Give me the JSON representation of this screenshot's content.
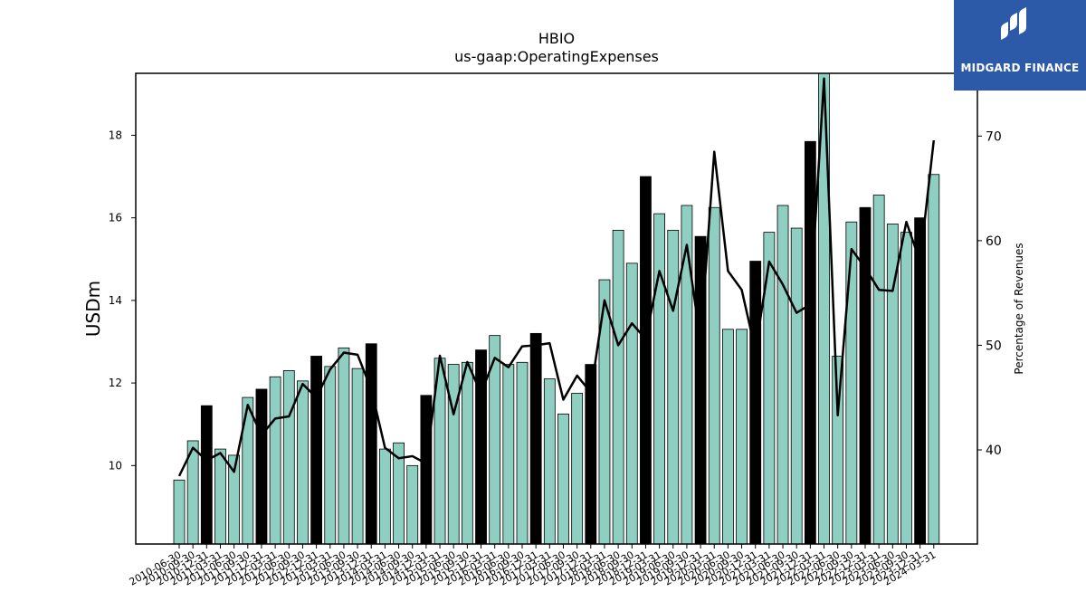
{
  "brand": {
    "name": "MIDGARD FINANCE",
    "color": "#2d5aa8"
  },
  "chart_data": {
    "type": "bar",
    "title": "HBIO",
    "subtitle": "us-gaap:OperatingExpenses",
    "ylabel": "USDm",
    "y2label": "Percentage of Revenues",
    "ylim": [
      8.1,
      19.5
    ],
    "y2lim": [
      31,
      76
    ],
    "yticks": [
      10,
      12,
      14,
      16,
      18
    ],
    "y2ticks": [
      40,
      50,
      60,
      70
    ],
    "colors": {
      "quarter_bar": "#8ecfc2",
      "year_end_bar": "#000000",
      "line": "#000000"
    },
    "categories": [
      "2010-06-30",
      "2010-09-30",
      "2010-12-31",
      "2011-03-31",
      "2011-06-30",
      "2011-09-30",
      "2011-12-31",
      "2012-03-31",
      "2012-06-30",
      "2012-09-30",
      "2012-12-31",
      "2013-03-31",
      "2013-06-30",
      "2013-09-30",
      "2013-12-31",
      "2014-03-31",
      "2014-06-30",
      "2014-09-30",
      "2014-12-31",
      "2015-03-31",
      "2015-06-30",
      "2015-09-30",
      "2015-12-31",
      "2016-03-31",
      "2016-06-30",
      "2016-09-30",
      "2016-12-31",
      "2017-03-31",
      "2017-06-30",
      "2017-09-30",
      "2017-12-31",
      "2018-03-31",
      "2018-06-30",
      "2018-09-30",
      "2018-12-31",
      "2019-03-31",
      "2019-06-30",
      "2019-09-30",
      "2019-12-31",
      "2020-03-31",
      "2020-06-30",
      "2020-09-30",
      "2020-12-31",
      "2021-03-31",
      "2021-06-30",
      "2021-09-30",
      "2021-12-31",
      "2022-03-31",
      "2022-06-30",
      "2022-09-30",
      "2022-12-31",
      "2023-03-31",
      "2023-06-30",
      "2023-09-30",
      "2023-12-31",
      "2024-03-31"
    ],
    "series": [
      {
        "values": [
          9.65,
          10.6,
          11.45,
          10.4,
          10.25,
          11.65,
          11.85,
          12.15,
          12.3,
          12.05,
          12.65,
          12.4,
          12.85,
          12.35,
          12.95,
          10.4,
          10.55,
          10.0,
          11.7,
          12.6,
          12.45,
          12.5,
          12.8,
          13.15,
          12.45,
          12.5,
          13.2,
          12.1,
          11.25,
          11.75,
          12.45,
          14.5,
          15.7,
          14.9,
          17.0,
          16.1,
          15.7,
          16.3,
          15.55,
          16.25,
          13.3,
          13.3,
          14.95,
          15.65,
          16.3,
          15.75,
          17.85,
          19.6,
          12.65,
          15.9,
          16.25,
          16.55,
          15.85,
          15.65,
          16.0,
          17.05
        ],
        "year_end": [
          false,
          false,
          true,
          false,
          false,
          false,
          true,
          false,
          false,
          false,
          true,
          false,
          false,
          false,
          true,
          false,
          false,
          false,
          true,
          false,
          false,
          false,
          true,
          false,
          false,
          false,
          true,
          false,
          false,
          false,
          true,
          false,
          false,
          false,
          true,
          false,
          false,
          false,
          true,
          false,
          false,
          false,
          true,
          false,
          false,
          false,
          true,
          false,
          false,
          false,
          true,
          false,
          false,
          false,
          true,
          false
        ]
      },
      {
        "axis": "right",
        "values": [
          37.5,
          40.2,
          39.0,
          39.7,
          37.9,
          44.3,
          41.4,
          43.0,
          43.2,
          46.3,
          45.0,
          47.7,
          49.3,
          49.1,
          45.8,
          40.2,
          39.2,
          39.4,
          38.7,
          49.0,
          43.4,
          48.4,
          45.4,
          48.8,
          47.9,
          49.9,
          50.0,
          50.2,
          44.8,
          47.1,
          45.5,
          54.3,
          50.0,
          52.1,
          50.6,
          57.1,
          53.3,
          59.6,
          50.4,
          68.5,
          57.1,
          55.3,
          49.5,
          58.0,
          55.8,
          53.1,
          53.9,
          75.5,
          43.3,
          59.2,
          57.4,
          55.3,
          55.2,
          61.8,
          58.0,
          69.6
        ]
      }
    ]
  }
}
